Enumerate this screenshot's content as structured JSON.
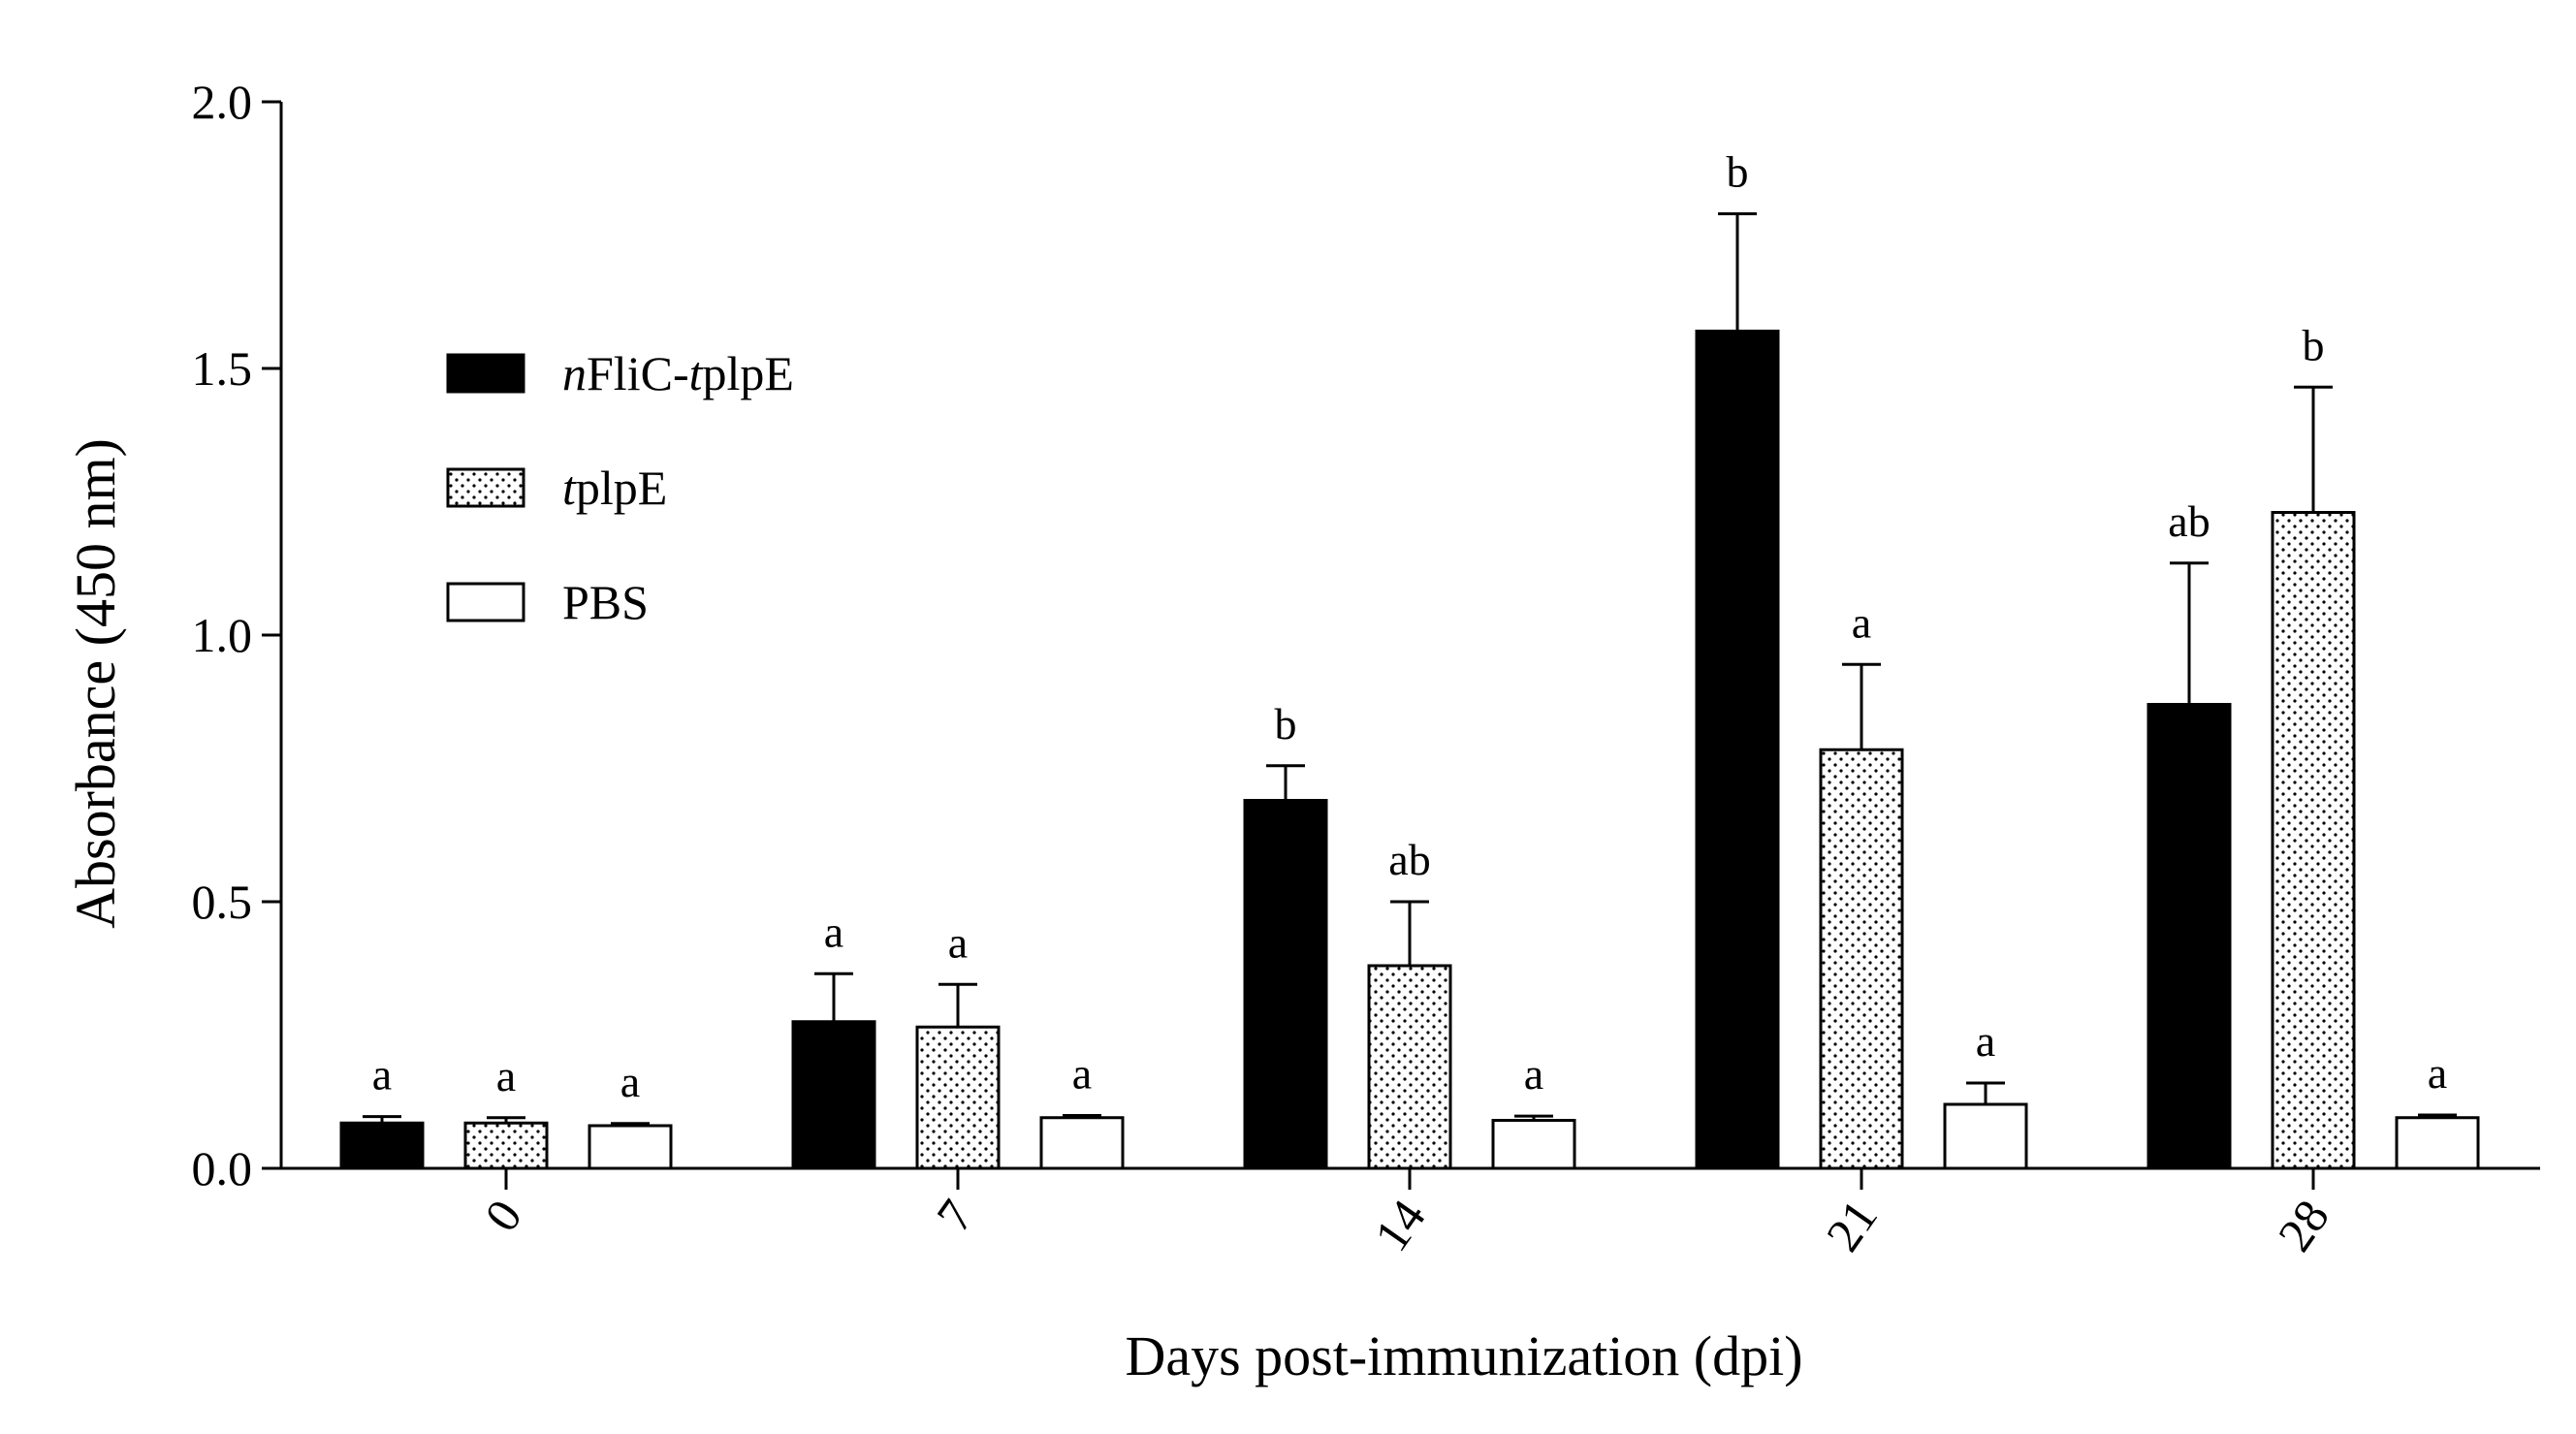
{
  "chart_data": {
    "type": "bar",
    "title": "",
    "xlabel": "Days post-immunization (dpi)",
    "ylabel": "Absorbance (450 nm)",
    "ylim": [
      0,
      2.0
    ],
    "yticks": [
      "0.0",
      "0.5",
      "1.0",
      "1.5",
      "2.0"
    ],
    "categories": [
      "0",
      "7",
      "14",
      "21",
      "28"
    ],
    "legend_position": "upper-left",
    "series": [
      {
        "name": "nFliC-tplpE",
        "name_parts": [
          {
            "text": "n",
            "italic": true
          },
          {
            "text": "FliC-",
            "italic": false
          },
          {
            "text": "t",
            "italic": true
          },
          {
            "text": "plpE",
            "italic": false
          }
        ],
        "fill": "black",
        "color": "#000000",
        "values": [
          0.085,
          0.275,
          0.69,
          1.57,
          0.87
        ],
        "errors": [
          0.012,
          0.09,
          0.065,
          0.22,
          0.265
        ],
        "significance": [
          "a",
          "a",
          "b",
          "b",
          "ab"
        ]
      },
      {
        "name": "tplpE",
        "name_parts": [
          {
            "text": "t",
            "italic": true
          },
          {
            "text": "plpE",
            "italic": false
          }
        ],
        "fill": "dotted",
        "color": "#000000",
        "values": [
          0.085,
          0.265,
          0.38,
          0.785,
          1.23
        ],
        "errors": [
          0.01,
          0.08,
          0.12,
          0.16,
          0.235
        ],
        "significance": [
          "a",
          "a",
          "ab",
          "a",
          "b"
        ]
      },
      {
        "name": "PBS",
        "name_parts": [
          {
            "text": "PBS",
            "italic": false
          }
        ],
        "fill": "white",
        "color": "#000000",
        "values": [
          0.08,
          0.095,
          0.09,
          0.12,
          0.095
        ],
        "errors": [
          0.004,
          0.004,
          0.008,
          0.04,
          0.005
        ],
        "significance": [
          "a",
          "a",
          "a",
          "a",
          "a"
        ]
      }
    ]
  }
}
